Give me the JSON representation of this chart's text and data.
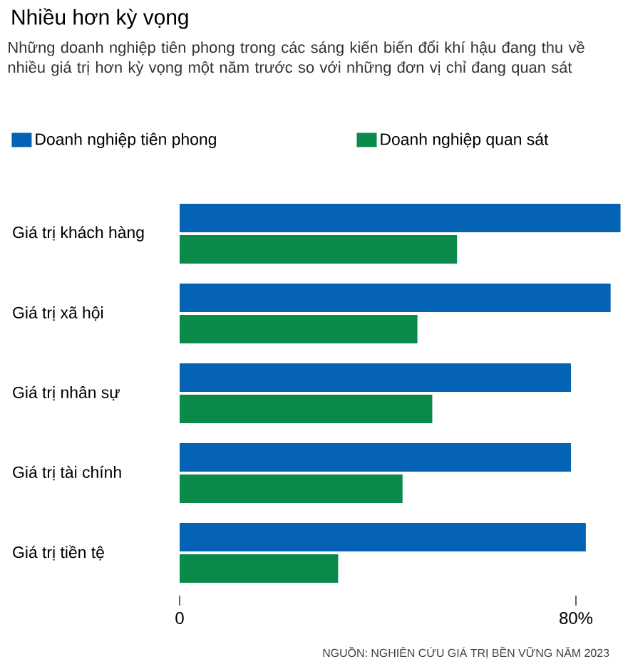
{
  "chart_data": {
    "type": "bar",
    "orientation": "horizontal",
    "title": "Nhiều hơn kỳ vọng",
    "subtitle": "Những doanh nghiệp tiên phong trong các sáng kiến biến đổi khí hậu đang thu về nhiều giá trị hơn kỳ vọng một năm trước so với những đơn vị chỉ đang quan sát",
    "categories": [
      "Giá trị khách hàng",
      "Giá trị xã hội",
      "Giá trị nhân sự",
      "Giá trị tài chính",
      "Giá trị tiền tệ"
    ],
    "series": [
      {
        "name": "Doanh nghiệp tiên phong",
        "color": "#0563b5",
        "values": [
          89,
          87,
          79,
          79,
          82
        ]
      },
      {
        "name": "Doanh nghiệp quan sát",
        "color": "#0a8a4a",
        "values": [
          56,
          48,
          51,
          45,
          32
        ]
      }
    ],
    "xlim": [
      0,
      89.5
    ],
    "xticks": [
      0,
      {
        "value": 80,
        "label": "80%"
      }
    ],
    "legend": "top left",
    "grid": false,
    "annotations": [
      "NGUỒN: NGHIÊN CỨU GIÁ TRỊ BỀN VỮNG NĂM 2023"
    ]
  }
}
